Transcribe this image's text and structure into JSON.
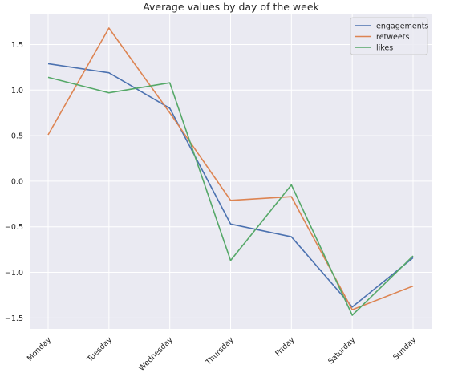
{
  "chart_data": {
    "type": "line",
    "title": "Average values by day of the week",
    "xlabel": "",
    "ylabel": "",
    "categories": [
      "Monday",
      "Tuesday",
      "Wednesday",
      "Thursday",
      "Friday",
      "Saturday",
      "Sunday"
    ],
    "series": [
      {
        "name": "engagements",
        "color": "#4c72b0",
        "values": [
          1.29,
          1.19,
          0.8,
          -0.47,
          -0.61,
          -1.38,
          -0.84
        ]
      },
      {
        "name": "retweets",
        "color": "#dd8452",
        "values": [
          0.51,
          1.68,
          0.75,
          -0.21,
          -0.17,
          -1.41,
          -1.15
        ]
      },
      {
        "name": "likes",
        "color": "#55a868",
        "values": [
          1.14,
          0.97,
          1.08,
          -0.87,
          -0.04,
          -1.47,
          -0.82
        ]
      }
    ],
    "yticks": [
      -1.5,
      -1.0,
      -0.5,
      0.0,
      0.5,
      1.0,
      1.5
    ],
    "ytick_labels": [
      "−1.5",
      "−1.0",
      "−0.5",
      "0.0",
      "0.5",
      "1.0",
      "1.5"
    ],
    "ylim": [
      -1.62,
      1.83
    ],
    "grid": true,
    "legend_position": "top-right",
    "colors": {
      "plot_background": "#eaeaf2",
      "grid": "#ffffff"
    }
  }
}
